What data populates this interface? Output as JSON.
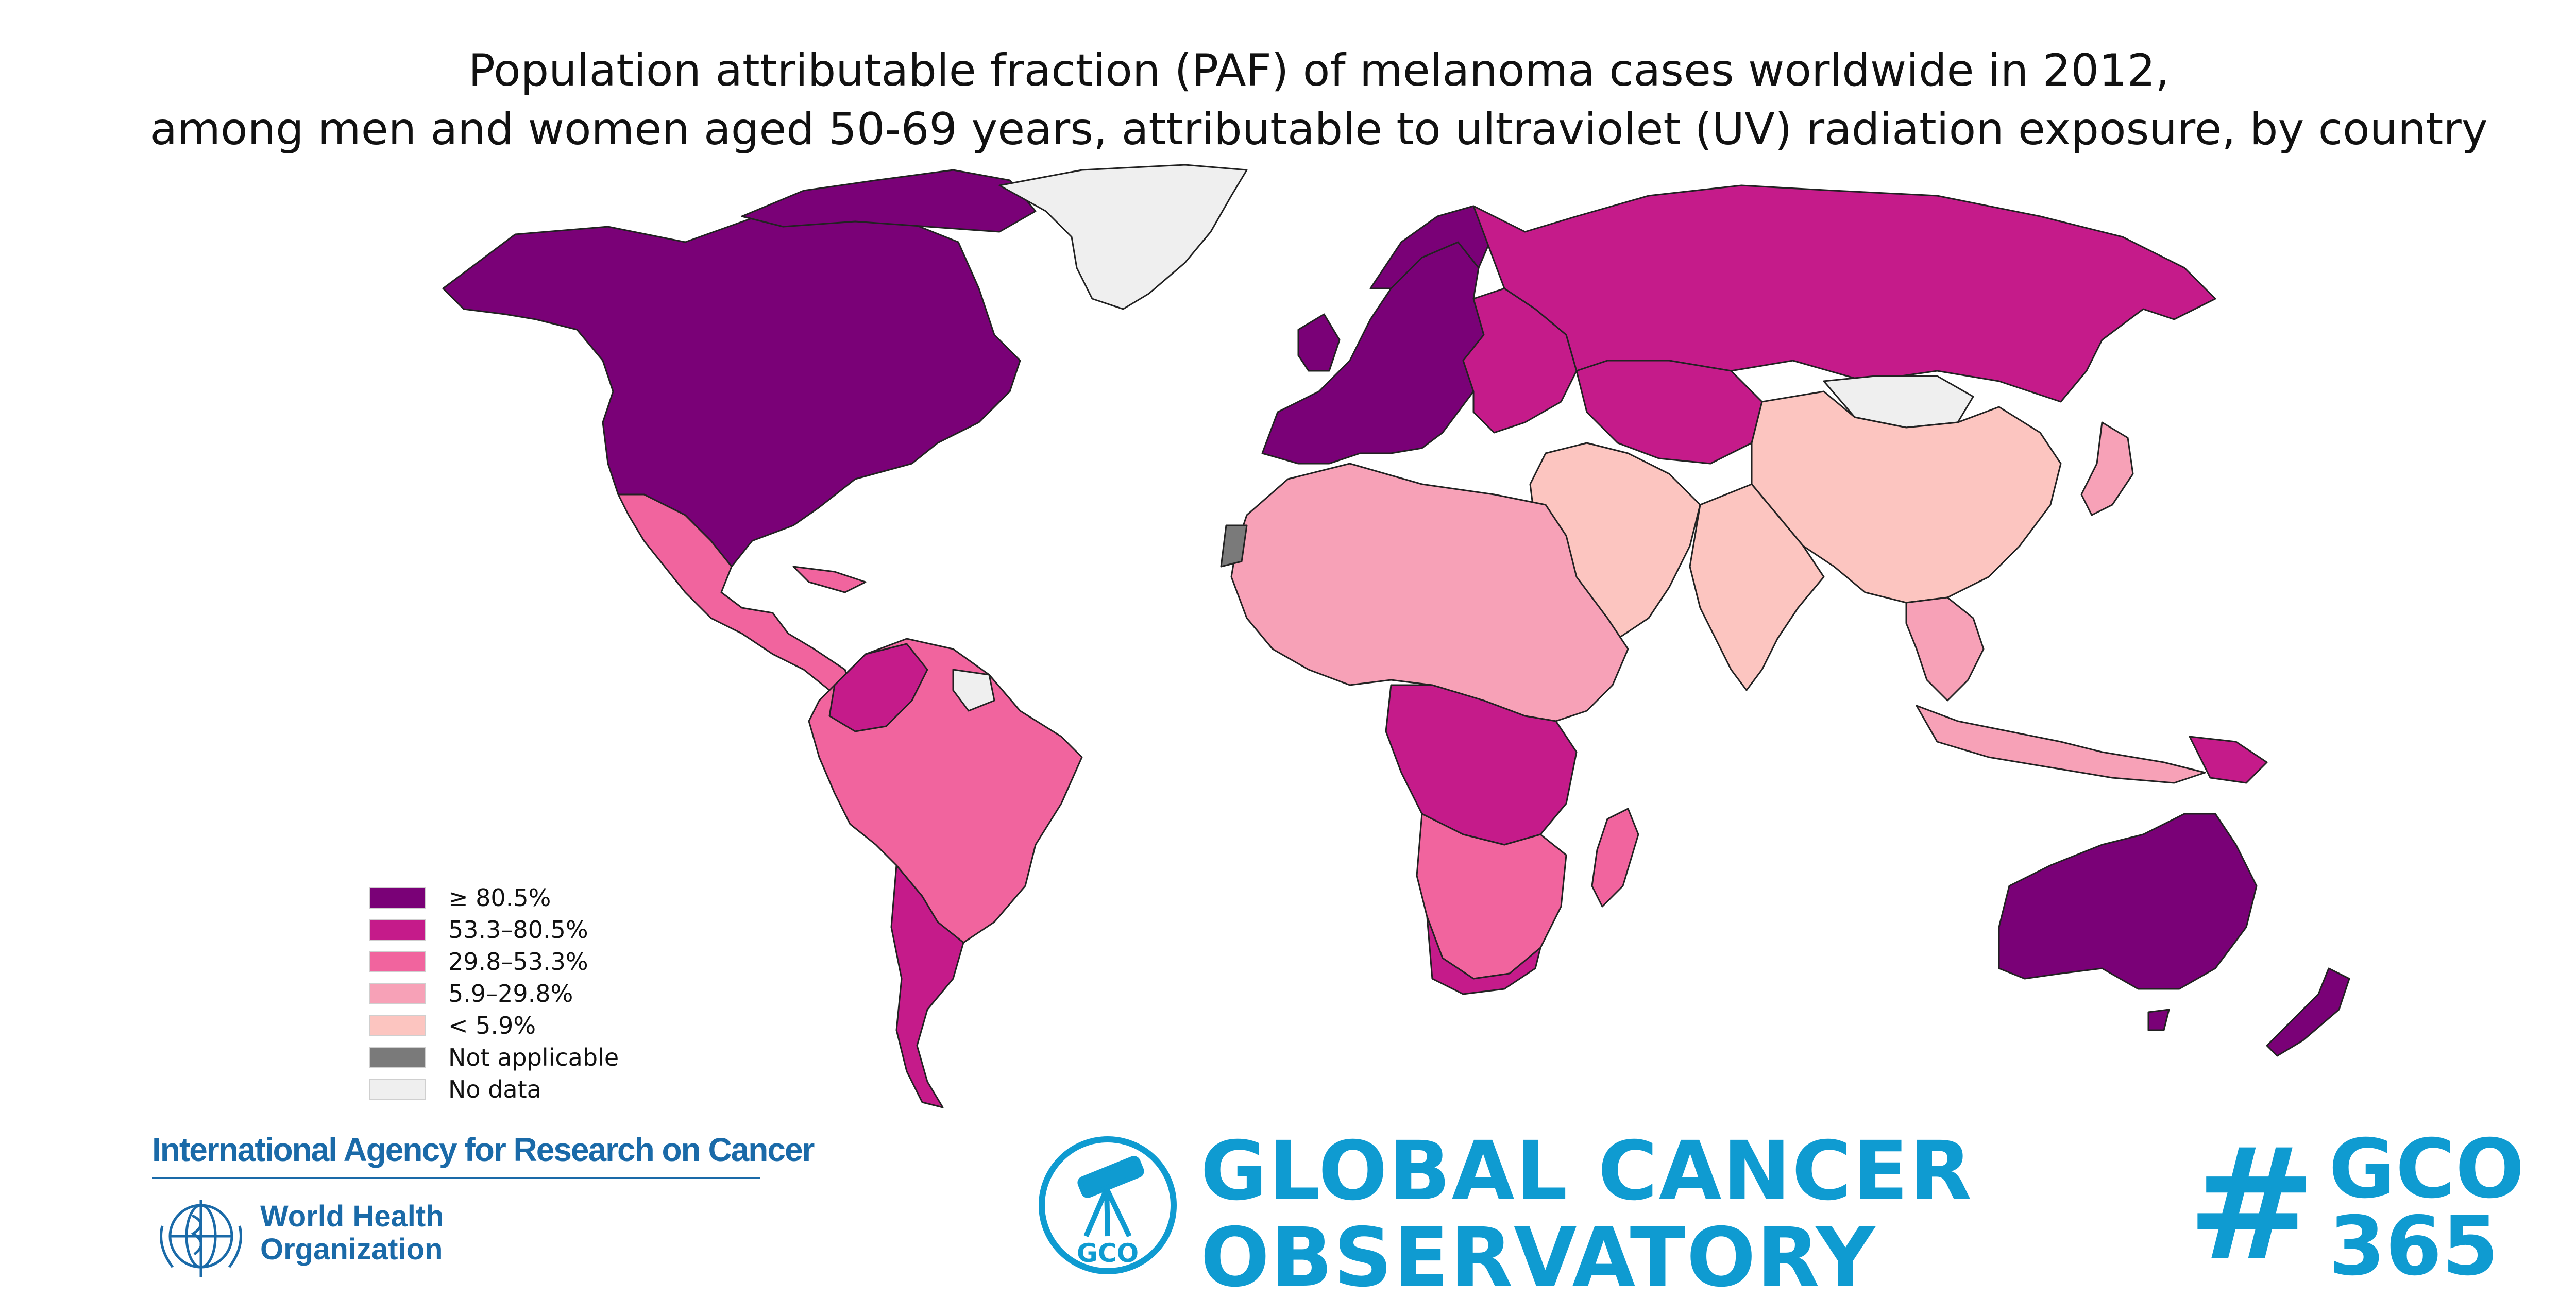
{
  "title": {
    "line1": "Population attributable fraction (PAF) of melanoma cases worldwide in 2012,",
    "line2": "among men and women aged 50-69 years, attributable to ultraviolet (UV) radiation exposure, by country"
  },
  "legend": [
    {
      "label": "≥ 80.5%",
      "color": "#7a0177"
    },
    {
      "label": "53.3–80.5%",
      "color": "#c51b8a"
    },
    {
      "label": "29.8–53.3%",
      "color": "#f1649e"
    },
    {
      "label": "5.9–29.8%",
      "color": "#f7a1b7"
    },
    {
      "label": "< 5.9%",
      "color": "#fcc5c0"
    },
    {
      "label": "Not applicable",
      "color": "#7a7a7a"
    },
    {
      "label": "No data",
      "color": "#efefef"
    }
  ],
  "map_colors": {
    "north_america": "#7a0177",
    "europe_west": "#7a0177",
    "europe_east": "#c51b8a",
    "russia": "#c51b8a",
    "greenland": "#efefef",
    "mexico_central_america": "#f1649e",
    "south_america_north": "#f1649e",
    "colombia": "#c51b8a",
    "argentina": "#c51b8a",
    "north_africa": "#f7a1b7",
    "central_africa": "#c51b8a",
    "southern_africa": "#f1649e",
    "middle_east": "#fcc5c0",
    "china_india": "#fcc5c0",
    "mongolia": "#efefef",
    "australia": "#7a0177",
    "new_zealand": "#7a0177",
    "southeast_asia": "#f7a1b7",
    "madagascar": "#f1649e",
    "japan": "#f7a1b7",
    "not_applicable": "#7a7a7a"
  },
  "footer": {
    "iarc": "International Agency for Research on Cancer",
    "who_line1": "World Health",
    "who_line2": "Organization",
    "gco_badge": "GCO",
    "gco_line1": "GLOBAL CANCER",
    "gco_line2": "OBSERVATORY",
    "hash_symbol": "#",
    "hash_line1": "GCO",
    "hash_line2": "365",
    "iarc_color": "#1a6aa8",
    "gco_color": "#0f9bd1"
  },
  "icons": [
    "who-emblem-icon",
    "gco-telescope-icon"
  ]
}
